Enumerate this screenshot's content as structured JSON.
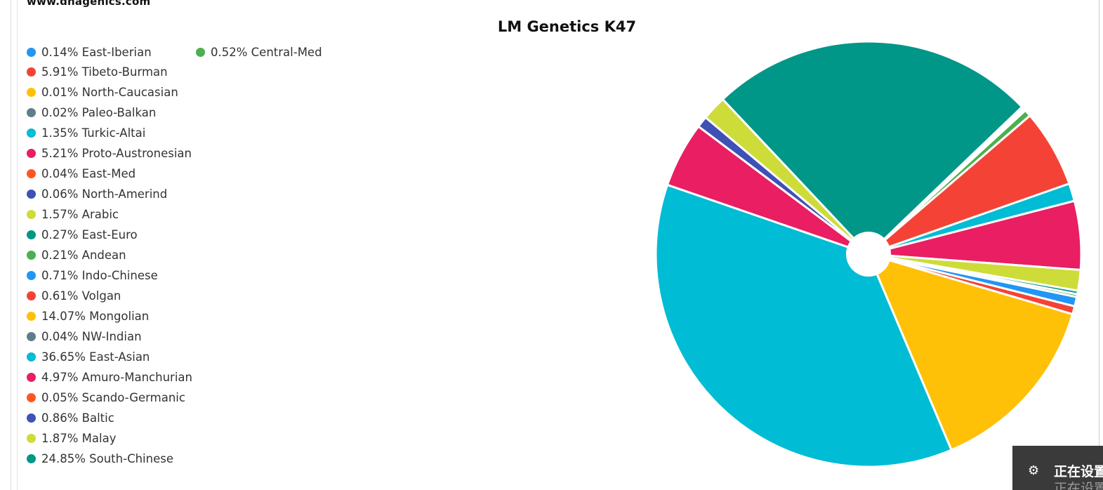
{
  "site": {
    "url": "www.dnagenics.com"
  },
  "toast": {
    "icon": "gear-icon",
    "text": "正在设置",
    "subtext": "正在设置"
  },
  "chart_data": {
    "type": "pie",
    "title": "LM Genetics K47",
    "legend_position": "top-left",
    "inner_hole": true,
    "slices": [
      {
        "label": "0.14% East-Iberian",
        "name": "East-Iberian",
        "value": 0.14,
        "color": "#2196f3"
      },
      {
        "label": "5.91% Tibeto-Burman",
        "name": "Tibeto-Burman",
        "value": 5.91,
        "color": "#f44336"
      },
      {
        "label": "0.01% North-Caucasian",
        "name": "North-Caucasian",
        "value": 0.01,
        "color": "#ffc107"
      },
      {
        "label": "0.02% Paleo-Balkan",
        "name": "Paleo-Balkan",
        "value": 0.02,
        "color": "#607d8b"
      },
      {
        "label": "1.35% Turkic-Altai",
        "name": "Turkic-Altai",
        "value": 1.35,
        "color": "#00bcd4"
      },
      {
        "label": "5.21% Proto-Austronesian",
        "name": "Proto-Austronesian",
        "value": 5.21,
        "color": "#e91e63"
      },
      {
        "label": "0.04% East-Med",
        "name": "East-Med",
        "value": 0.04,
        "color": "#ff5722"
      },
      {
        "label": "0.06% North-Amerind",
        "name": "North-Amerind",
        "value": 0.06,
        "color": "#3f51b5"
      },
      {
        "label": "1.57% Arabic",
        "name": "Arabic",
        "value": 1.57,
        "color": "#cddc39"
      },
      {
        "label": "0.27% East-Euro",
        "name": "East-Euro",
        "value": 0.27,
        "color": "#009688"
      },
      {
        "label": "0.21% Andean",
        "name": "Andean",
        "value": 0.21,
        "color": "#4caf50"
      },
      {
        "label": "0.71% Indo-Chinese",
        "name": "Indo-Chinese",
        "value": 0.71,
        "color": "#2196f3"
      },
      {
        "label": "0.61% Volgan",
        "name": "Volgan",
        "value": 0.61,
        "color": "#f44336"
      },
      {
        "label": "14.07% Mongolian",
        "name": "Mongolian",
        "value": 14.07,
        "color": "#ffc107"
      },
      {
        "label": "0.04% NW-Indian",
        "name": "NW-Indian",
        "value": 0.04,
        "color": "#607d8b"
      },
      {
        "label": "36.65% East-Asian",
        "name": "East-Asian",
        "value": 36.65,
        "color": "#00bcd4"
      },
      {
        "label": "4.97% Amuro-Manchurian",
        "name": "Amuro-Manchurian",
        "value": 4.97,
        "color": "#e91e63"
      },
      {
        "label": "0.05% Scando-Germanic",
        "name": "Scando-Germanic",
        "value": 0.05,
        "color": "#ff5722"
      },
      {
        "label": "0.86% Baltic",
        "name": "Baltic",
        "value": 0.86,
        "color": "#3f51b5"
      },
      {
        "label": "1.87% Malay",
        "name": "Malay",
        "value": 1.87,
        "color": "#cddc39"
      },
      {
        "label": "24.85% South-Chinese",
        "name": "South-Chinese",
        "value": 24.85,
        "color": "#009688"
      },
      {
        "label": "0.52% Central-Med",
        "name": "Central-Med",
        "value": 0.52,
        "color": "#4caf50"
      }
    ]
  }
}
